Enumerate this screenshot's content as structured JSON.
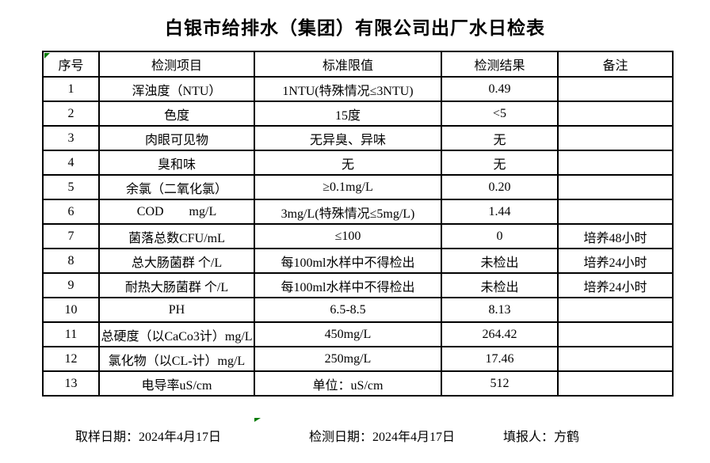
{
  "title": "白银市给排水（集团）有限公司出厂水日检表",
  "table": {
    "headers": [
      "序号",
      "检测项目",
      "标准限值",
      "检测结果",
      "备注"
    ],
    "rows": [
      {
        "no": "1",
        "item": "浑浊度（NTU）",
        "limit": "1NTU(特殊情况≤3NTU)",
        "result": "0.49",
        "remark": ""
      },
      {
        "no": "2",
        "item": "色度",
        "limit": "15度",
        "result": "<5",
        "remark": ""
      },
      {
        "no": "3",
        "item": "肉眼可见物",
        "limit": "无异臭、异味",
        "result": "无",
        "remark": ""
      },
      {
        "no": "4",
        "item": "臭和味",
        "limit": "无",
        "result": "无",
        "remark": ""
      },
      {
        "no": "5",
        "item": "余氯（二氧化氯）",
        "limit": "≥0.1mg/L",
        "result": "0.20",
        "remark": ""
      },
      {
        "no": "6",
        "item": "COD        mg/L",
        "limit": "3mg/L(特殊情况≤5mg/L)",
        "result": "1.44",
        "remark": ""
      },
      {
        "no": "7",
        "item": "菌落总数CFU/mL",
        "limit": "≤100",
        "result": "0",
        "remark": "培养48小时"
      },
      {
        "no": "8",
        "item": "总大肠菌群 个/L",
        "limit": "每100ml水样中不得检出",
        "result": "未检出",
        "remark": "培养24小时"
      },
      {
        "no": "9",
        "item": "耐热大肠菌群 个/L",
        "limit": "每100ml水样中不得检出",
        "result": "未检出",
        "remark": "培养24小时"
      },
      {
        "no": "10",
        "item": "PH",
        "limit": "6.5-8.5",
        "result": "8.13",
        "remark": ""
      },
      {
        "no": "11",
        "item": "总硬度（以CaCo3计）mg/L",
        "limit": "450mg/L",
        "result": "264.42",
        "remark": ""
      },
      {
        "no": "12",
        "item": "氯化物（以CL-计）mg/L",
        "limit": "250mg/L",
        "result": "17.46",
        "remark": ""
      },
      {
        "no": "13",
        "item": "电导率uS/cm",
        "limit": "单位：uS/cm",
        "result": "512",
        "remark": ""
      }
    ]
  },
  "footer": {
    "sampling_date": "取样日期：2024年4月17日",
    "test_date": "检测日期：2024年4月17日",
    "reporter": "填报人：方鹤"
  },
  "colors": {
    "background": "#ffffff",
    "border": "#000000",
    "cell_marker_green": "#007b00"
  }
}
